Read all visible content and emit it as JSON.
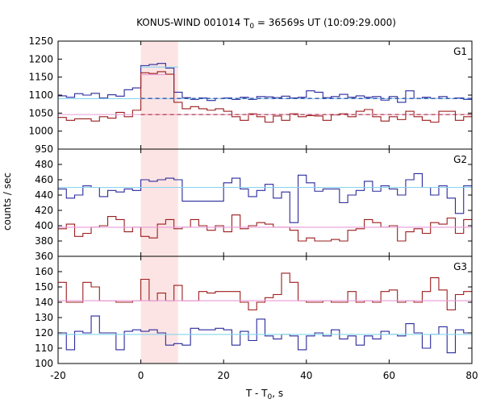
{
  "chart_data": {
    "type": "line",
    "title": "KONUS-WIND 001014 T",
    "title_sub": "0",
    "title_rest": " = 36569s UT (10:09:29.000)",
    "xlabel": "T - T",
    "xlabel_sub": "0",
    "xlabel_rest": ", s",
    "ylabel": "counts / sec",
    "xlim": [
      -20,
      80
    ],
    "x_ticks": [
      "-20",
      "0",
      "20",
      "40",
      "60",
      "80"
    ],
    "highlight_interval": [
      0,
      9
    ],
    "highlight_color": "#fde4e4",
    "colors": {
      "blue": "#2a2a9c",
      "dark_red": "#9c1c1c",
      "light_blue": "#86d4ee",
      "pink": "#e89ad8"
    },
    "panels": [
      {
        "name": "G1",
        "ylim": [
          950,
          1250
        ],
        "y_ticks": [
          950,
          1000,
          1050,
          1100,
          1150,
          1200,
          1250
        ],
        "series": [
          {
            "color": "blue",
            "x": [
              -20,
              -18,
              -16,
              -14,
              -12,
              -10,
              -8,
              -6,
              -4,
              -2,
              0,
              2,
              4,
              6,
              8,
              10,
              12,
              14,
              16,
              18,
              20,
              22,
              24,
              26,
              28,
              30,
              32,
              34,
              36,
              38,
              40,
              42,
              44,
              46,
              48,
              50,
              52,
              54,
              56,
              58,
              60,
              62,
              64,
              66,
              68,
              70,
              72,
              74,
              76,
              78
            ],
            "y": [
              1098,
              1094,
              1104,
              1100,
              1105,
              1092,
              1101,
              1097,
              1115,
              1120,
              1182,
              1185,
              1188,
              1175,
              1108,
              1093,
              1088,
              1092,
              1085,
              1090,
              1092,
              1088,
              1094,
              1088,
              1096,
              1095,
              1093,
              1097,
              1092,
              1094,
              1112,
              1108,
              1093,
              1096,
              1102,
              1094,
              1098,
              1094,
              1096,
              1086,
              1096,
              1080,
              1112,
              1090,
              1094,
              1090,
              1096,
              1090,
              1092,
              1088
            ]
          },
          {
            "color": "dark_red",
            "x": [
              -20,
              -18,
              -16,
              -14,
              -12,
              -10,
              -8,
              -6,
              -4,
              -2,
              0,
              2,
              4,
              6,
              8,
              10,
              12,
              14,
              16,
              18,
              20,
              22,
              24,
              26,
              28,
              30,
              32,
              34,
              36,
              38,
              40,
              42,
              44,
              46,
              48,
              50,
              52,
              54,
              56,
              58,
              60,
              62,
              64,
              66,
              68,
              70,
              72,
              74,
              76,
              78
            ],
            "y": [
              1038,
              1030,
              1034,
              1034,
              1028,
              1040,
              1036,
              1052,
              1040,
              1058,
              1162,
              1160,
              1165,
              1158,
              1080,
              1062,
              1068,
              1062,
              1058,
              1062,
              1055,
              1040,
              1030,
              1048,
              1040,
              1025,
              1042,
              1030,
              1048,
              1040,
              1043,
              1042,
              1030,
              1045,
              1048,
              1040,
              1055,
              1060,
              1040,
              1028,
              1040,
              1032,
              1055,
              1040,
              1030,
              1025,
              1055,
              1055,
              1030,
              1040
            ]
          },
          {
            "color": "light_blue",
            "x": [
              -20,
              80
            ],
            "y": [
              1090,
              1090
            ]
          },
          {
            "color": "pink",
            "x": [
              -20,
              80
            ],
            "y": [
              1046,
              1046
            ]
          },
          {
            "color": "light_blue",
            "x": [
              0,
              9
            ],
            "y": [
              1178,
              1178
            ]
          },
          {
            "color": "pink",
            "x": [
              0,
              6
            ],
            "y": [
              1157,
              1157
            ]
          },
          {
            "color": "blue",
            "x": [
              0,
              80
            ],
            "y": [
              1091,
              1091
            ],
            "dashed": true
          },
          {
            "color": "dark_red",
            "x": [
              0,
              80
            ],
            "y": [
              1046,
              1046
            ],
            "dashed": true
          }
        ]
      },
      {
        "name": "G2",
        "ylim": [
          360,
          500
        ],
        "y_ticks": [
          360,
          380,
          400,
          420,
          440,
          460,
          480
        ],
        "series": [
          {
            "color": "blue",
            "x": [
              -20,
              -18,
              -16,
              -14,
              -12,
              -10,
              -8,
              -6,
              -4,
              -2,
              0,
              2,
              4,
              6,
              8,
              10,
              12,
              14,
              16,
              18,
              20,
              22,
              24,
              26,
              28,
              30,
              32,
              34,
              36,
              38,
              40,
              42,
              44,
              46,
              48,
              50,
              52,
              54,
              56,
              58,
              60,
              62,
              64,
              66,
              68,
              70,
              72,
              74,
              76,
              78
            ],
            "y": [
              448,
              436,
              440,
              452,
              450,
              438,
              446,
              444,
              448,
              446,
              460,
              458,
              460,
              462,
              460,
              432,
              432,
              432,
              432,
              432,
              456,
              462,
              448,
              438,
              446,
              454,
              436,
              444,
              404,
              466,
              456,
              445,
              448,
              448,
              430,
              440,
              446,
              458,
              445,
              452,
              448,
              440,
              460,
              468,
              450,
              440,
              452,
              436,
              416,
              452
            ]
          },
          {
            "color": "dark_red",
            "x": [
              -20,
              -18,
              -16,
              -14,
              -12,
              -10,
              -8,
              -6,
              -4,
              -2,
              0,
              2,
              4,
              6,
              8,
              10,
              12,
              14,
              16,
              18,
              20,
              22,
              24,
              26,
              28,
              30,
              32,
              34,
              36,
              38,
              40,
              42,
              44,
              46,
              48,
              50,
              52,
              54,
              56,
              58,
              60,
              62,
              64,
              66,
              68,
              70,
              72,
              74,
              76,
              78
            ],
            "y": [
              396,
              402,
              386,
              390,
              398,
              400,
              412,
              408,
              392,
              398,
              386,
              384,
              402,
              408,
              396,
              398,
              408,
              400,
              394,
              400,
              392,
              414,
              396,
              400,
              404,
              402,
              398,
              398,
              394,
              380,
              384,
              380,
              380,
              382,
              380,
              394,
              396,
              408,
              404,
              398,
              400,
              380,
              392,
              396,
              390,
              404,
              402,
              410,
              390,
              408
            ]
          },
          {
            "color": "light_blue",
            "x": [
              -20,
              80
            ],
            "y": [
              450,
              450
            ]
          },
          {
            "color": "pink",
            "x": [
              -20,
              80
            ],
            "y": [
              398,
              398
            ]
          }
        ]
      },
      {
        "name": "G3",
        "ylim": [
          100,
          170
        ],
        "y_ticks": [
          100,
          110,
          120,
          130,
          140,
          150,
          160
        ],
        "series": [
          {
            "color": "blue",
            "x": [
              -20,
              -18,
              -16,
              -14,
              -12,
              -10,
              -8,
              -6,
              -4,
              -2,
              0,
              2,
              4,
              6,
              8,
              10,
              12,
              14,
              16,
              18,
              20,
              22,
              24,
              26,
              28,
              30,
              32,
              34,
              36,
              38,
              40,
              42,
              44,
              46,
              48,
              50,
              52,
              54,
              56,
              58,
              60,
              62,
              64,
              66,
              68,
              70,
              72,
              74,
              76,
              78
            ],
            "y": [
              120,
              109,
              121,
              120,
              131,
              120,
              120,
              109,
              121,
              122,
              121,
              122,
              120,
              112,
              113,
              112,
              123,
              122,
              122,
              123,
              122,
              112,
              121,
              115,
              129,
              118,
              116,
              119,
              118,
              109,
              118,
              120,
              118,
              122,
              116,
              118,
              112,
              118,
              116,
              121,
              119,
              118,
              126,
              120,
              110,
              119,
              124,
              107,
              122,
              120
            ]
          },
          {
            "color": "dark_red",
            "x": [
              -20,
              -18,
              -16,
              -14,
              -12,
              -10,
              -8,
              -6,
              -4,
              -2,
              0,
              2,
              4,
              6,
              8,
              10,
              12,
              14,
              16,
              18,
              20,
              22,
              24,
              26,
              28,
              30,
              32,
              34,
              36,
              38,
              40,
              42,
              44,
              46,
              48,
              50,
              52,
              54,
              56,
              58,
              60,
              62,
              64,
              66,
              68,
              70,
              72,
              74,
              76,
              78
            ],
            "y": [
              153,
              140,
              140,
              153,
              150,
              141,
              141,
              140,
              140,
              141,
              155,
              141,
              146,
              141,
              151,
              141,
              141,
              147,
              146,
              147,
              147,
              147,
              140,
              135,
              140,
              143,
              145,
              159,
              153,
              141,
              140,
              140,
              141,
              140,
              140,
              147,
              140,
              141,
              140,
              147,
              148,
              140,
              141,
              140,
              147,
              156,
              148,
              135,
              145,
              147
            ]
          },
          {
            "color": "light_blue",
            "x": [
              -20,
              80
            ],
            "y": [
              119,
              119
            ]
          },
          {
            "color": "pink",
            "x": [
              -20,
              80
            ],
            "y": [
              141,
              141
            ]
          }
        ]
      }
    ]
  }
}
